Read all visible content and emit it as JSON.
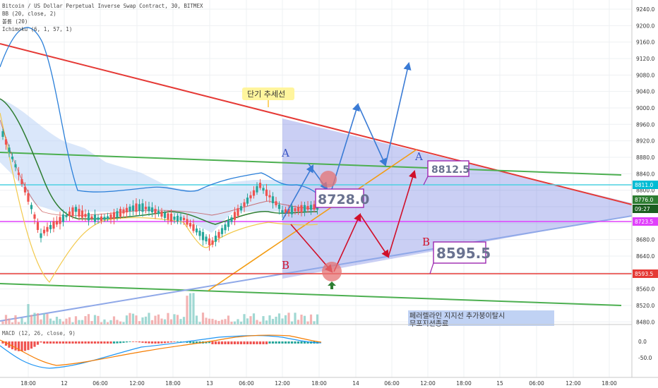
{
  "header": {
    "title": "Bitcoin / US Dollar Perpetual Inverse Swap Contract, 30, BITMEX",
    "indicator_bb": "BB (20, close, 2)",
    "indicator_vol": "볼륨 (20)",
    "indicator_ichimoku": "Ichimoku (6, 1, 57, 1)"
  },
  "macd_label": "MACD (12, 26, close, 9)",
  "annotations": {
    "trendline_label": "단기 추세선",
    "label_a_left": "A",
    "label_b_left": "B",
    "label_a_right": "A",
    "label_b_right": "B",
    "price_box_1": "8728.0",
    "price_box_2": "8812.5",
    "price_box_3": "8595.5",
    "note_line1": "페러렐라인 지지선 추가붕이탈시",
    "note_line2": "무포지션종료"
  },
  "price_axis": {
    "ticks": [
      "9240.0",
      "9200.0",
      "9160.0",
      "9120.0",
      "9080.0",
      "9040.0",
      "9000.0",
      "8960.0",
      "8920.0",
      "8880.0",
      "8840.0",
      "8800.0",
      "8760.0",
      "8720.0",
      "8680.0",
      "8640.0",
      "8600.0",
      "8560.0",
      "8520.0",
      "8480.0"
    ],
    "tags": [
      {
        "text": "8811.0",
        "color": "#00bcd4"
      },
      {
        "text": "8776.0",
        "color": "#2e7d32"
      },
      {
        "text": "09:27",
        "color": "#1b5e20"
      },
      {
        "text": "8723.5",
        "color": "#e040fb"
      },
      {
        "text": "8593.5",
        "color": "#e53935"
      }
    ]
  },
  "macd_axis": {
    "ticks": [
      "0.0",
      "-50.0"
    ]
  },
  "time_axis": {
    "ticks": [
      "18:00",
      "12",
      "06:00",
      "12:00",
      "18:00",
      "13",
      "06:00",
      "12:00",
      "18:00",
      "14",
      "06:00",
      "12:00",
      "18:00",
      "15",
      "06:00",
      "12:00",
      "18:00"
    ]
  },
  "colors": {
    "red_line": "#e53935",
    "green_line": "#4caf50",
    "cyan_line": "#4dd0e1",
    "magenta_line": "#e040fb",
    "blue_arrow": "#3a7bd5",
    "red_arrow": "#d0102a",
    "triangle_fill": "#3f51d8",
    "orange_line": "#f39c12",
    "candle_up": "#26a69a",
    "candle_down": "#ef5350"
  },
  "chart_data": {
    "type": "candlestick",
    "symbol": "XBTUSD",
    "interval": "30",
    "ylim": [
      8460,
      9260
    ],
    "horizontal_levels": [
      {
        "price": 8811.0,
        "color": "cyan"
      },
      {
        "price": 8723.5,
        "color": "magenta"
      },
      {
        "price": 8593.5,
        "color": "red"
      }
    ],
    "last_price": 8776.0,
    "scenario_targets": [
      8728.0,
      8812.5,
      8595.5
    ],
    "macd_range": [
      -80,
      20
    ]
  }
}
